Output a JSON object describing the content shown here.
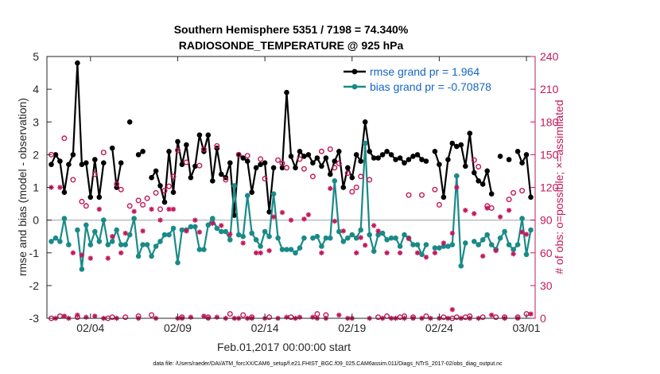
{
  "chart_data": {
    "type": "line",
    "title_line1": "Southern Hemisphere 5351 / 7198 = 74.340%",
    "title_line2": "RADIOSONDE_TEMPERATURE @ 925 hPa",
    "xlabel": "Feb.01,2017 00:00:00 start",
    "ylabel_left": "rmse and bias (model - observation)",
    "ylabel_right": "# of obs: o=possible; ×=assimilated",
    "footnote": "data file: /Users/raeder/DAI/ATM_forcXX/CAM6_setup/f.e21.FHIST_BGC.f09_025.CAM6assim.011/Diags_NTrS_2017-02/obs_diag_output.nc",
    "x_range_days": [
      0.5,
      28.5
    ],
    "y_left_range": [
      -3,
      5
    ],
    "y_left_ticks": [
      "5",
      "4",
      "3",
      "2",
      "1",
      "0",
      "-1",
      "-2",
      "-3"
    ],
    "y_right_range": [
      0,
      240
    ],
    "y_right_ticks": [
      "240",
      "210",
      "180",
      "150",
      "120",
      "90",
      "60",
      "30",
      "0"
    ],
    "x_ticks": [
      {
        "day": 3.0,
        "label": "02/04"
      },
      {
        "day": 8.0,
        "label": "02/09"
      },
      {
        "day": 13.0,
        "label": "02/14"
      },
      {
        "day": 18.0,
        "label": "02/19"
      },
      {
        "day": 23.0,
        "label": "02/24"
      },
      {
        "day": 28.0,
        "label": "03/01"
      }
    ],
    "legend": {
      "position": "top-right",
      "entries": [
        "rmse grand pr = 1.964",
        "bias grand pr = -0.70878"
      ]
    },
    "colors": {
      "rmse": "#000000",
      "bias": "#1a8a88",
      "obs": "#c2185b",
      "legend_text": "#1565c0",
      "zero_line": "#bdbdbd"
    },
    "series_rmse": [
      [
        0.75,
        1.7
      ],
      [
        1.0,
        2.0
      ],
      [
        1.25,
        1.8
      ],
      [
        1.5,
        0.85
      ],
      [
        1.75,
        1.7
      ],
      [
        2.0,
        2.0
      ],
      [
        2.25,
        4.8
      ],
      [
        2.5,
        1.7
      ],
      [
        2.75,
        1.75
      ],
      [
        3.0,
        0.7
      ],
      [
        3.25,
        1.85
      ],
      [
        3.5,
        0.7
      ],
      [
        3.75,
        1.75
      ],
      [
        4.25,
        2.2
      ],
      [
        4.5,
        1.0
      ],
      [
        4.75,
        1.75
      ],
      [
        5.25,
        3.0
      ],
      [
        5.75,
        2.0
      ],
      [
        6.0,
        2.1
      ],
      [
        6.5,
        1.3
      ],
      [
        6.75,
        1.5
      ],
      [
        7.0,
        1.05
      ],
      [
        7.25,
        0.55
      ],
      [
        7.5,
        2.1
      ],
      [
        7.75,
        0.85
      ],
      [
        8.0,
        2.4
      ],
      [
        8.25,
        1.7
      ],
      [
        8.5,
        2.3
      ],
      [
        8.75,
        1.3
      ],
      [
        9.0,
        1.65
      ],
      [
        9.25,
        2.6
      ],
      [
        9.5,
        2.1
      ],
      [
        9.75,
        2.6
      ],
      [
        10.0,
        1.2
      ],
      [
        10.25,
        2.2
      ],
      [
        10.5,
        1.4
      ],
      [
        10.75,
        1.3
      ],
      [
        11.0,
        1.75
      ],
      [
        11.25,
        0.15
      ],
      [
        11.5,
        2.0
      ],
      [
        11.75,
        1.9
      ],
      [
        12.0,
        1.8
      ],
      [
        12.25,
        0.85
      ],
      [
        12.5,
        1.6
      ],
      [
        12.75,
        1.7
      ],
      [
        13.0,
        1.75
      ],
      [
        13.25,
        0.25
      ],
      [
        13.5,
        1.6
      ],
      [
        14.0,
        1.6
      ],
      [
        14.25,
        3.9
      ],
      [
        14.5,
        1.95
      ],
      [
        14.75,
        1.6
      ],
      [
        15.0,
        2.1
      ],
      [
        15.25,
        1.95
      ],
      [
        15.5,
        2.0
      ],
      [
        15.75,
        1.75
      ],
      [
        16.0,
        1.9
      ],
      [
        16.25,
        1.65
      ],
      [
        16.5,
        1.9
      ],
      [
        16.75,
        1.4
      ],
      [
        17.0,
        1.8
      ],
      [
        17.25,
        2.1
      ],
      [
        17.5,
        1.0
      ],
      [
        17.75,
        1.6
      ],
      [
        18.0,
        1.3
      ],
      [
        18.25,
        2.0
      ],
      [
        18.5,
        1.8
      ],
      [
        18.75,
        3.0
      ],
      [
        19.0,
        2.1
      ],
      [
        19.25,
        1.9
      ],
      [
        19.5,
        1.9
      ],
      [
        19.75,
        2.0
      ],
      [
        20.0,
        2.1
      ],
      [
        20.25,
        2.0
      ],
      [
        20.5,
        1.85
      ],
      [
        20.75,
        1.9
      ],
      [
        21.0,
        1.75
      ],
      [
        21.25,
        1.85
      ],
      [
        21.5,
        1.95
      ],
      [
        21.75,
        2.0
      ],
      [
        22.0,
        1.85
      ],
      [
        22.25,
        1.8
      ],
      [
        22.75,
        2.1
      ],
      [
        23.0,
        1.7
      ],
      [
        23.25,
        0.7
      ],
      [
        23.5,
        1.85
      ],
      [
        23.75,
        2.35
      ],
      [
        24.0,
        2.25
      ],
      [
        24.25,
        2.3
      ],
      [
        24.5,
        1.65
      ],
      [
        24.75,
        2.65
      ],
      [
        25.0,
        1.45
      ],
      [
        25.25,
        1.2
      ],
      [
        25.5,
        1.1
      ],
      [
        25.75,
        1.5
      ],
      [
        26.0,
        0.8
      ],
      [
        26.5,
        1.95
      ],
      [
        27.0,
        1.85
      ],
      [
        27.5,
        2.1
      ],
      [
        27.75,
        1.75
      ],
      [
        28.0,
        2.0
      ],
      [
        28.25,
        0.7
      ]
    ],
    "series_bias": [
      [
        0.75,
        -0.65
      ],
      [
        1.0,
        -0.55
      ],
      [
        1.25,
        -0.65
      ],
      [
        1.5,
        0.05
      ],
      [
        1.75,
        -0.75
      ],
      [
        2.25,
        -0.3
      ],
      [
        2.5,
        -1.5
      ],
      [
        2.75,
        -0.15
      ],
      [
        3.0,
        -0.75
      ],
      [
        3.25,
        -0.35
      ],
      [
        3.5,
        -0.65
      ],
      [
        3.75,
        0.0
      ],
      [
        4.0,
        -0.75
      ],
      [
        4.25,
        -0.65
      ],
      [
        4.5,
        -0.3
      ],
      [
        4.75,
        -0.75
      ],
      [
        5.0,
        -0.75
      ],
      [
        5.25,
        -0.45
      ],
      [
        5.5,
        0.05
      ],
      [
        5.75,
        -1.1
      ],
      [
        6.0,
        -0.75
      ],
      [
        6.25,
        -0.75
      ],
      [
        6.5,
        -1.1
      ],
      [
        6.75,
        -0.8
      ],
      [
        7.0,
        -0.65
      ],
      [
        7.25,
        -0.45
      ],
      [
        7.5,
        -0.45
      ],
      [
        7.75,
        -0.25
      ],
      [
        8.0,
        -1.3
      ],
      [
        8.25,
        -0.3
      ],
      [
        8.5,
        -0.3
      ],
      [
        8.75,
        -0.2
      ],
      [
        9.0,
        -0.2
      ],
      [
        9.25,
        -0.9
      ],
      [
        9.5,
        -0.9
      ],
      [
        9.75,
        -0.15
      ],
      [
        10.0,
        0.05
      ],
      [
        10.25,
        -0.25
      ],
      [
        10.5,
        -0.35
      ],
      [
        10.75,
        -0.35
      ],
      [
        11.0,
        -0.6
      ],
      [
        11.25,
        1.05
      ],
      [
        11.5,
        -0.45
      ],
      [
        11.75,
        -0.5
      ],
      [
        12.0,
        0.75
      ],
      [
        12.25,
        -0.4
      ],
      [
        12.5,
        -0.6
      ],
      [
        12.75,
        -0.8
      ],
      [
        13.0,
        -0.35
      ],
      [
        13.25,
        -0.5
      ],
      [
        13.5,
        0.8
      ],
      [
        13.75,
        -0.55
      ],
      [
        14.0,
        -0.9
      ],
      [
        14.25,
        -0.9
      ],
      [
        14.5,
        -0.9
      ],
      [
        14.75,
        -1.0
      ],
      [
        15.0,
        -0.85
      ],
      [
        15.25,
        -0.55
      ],
      [
        15.75,
        -0.55
      ],
      [
        16.0,
        -0.5
      ],
      [
        16.25,
        -0.8
      ],
      [
        16.5,
        -0.55
      ],
      [
        16.75,
        -0.55
      ],
      [
        17.0,
        1.2
      ],
      [
        17.25,
        -0.35
      ],
      [
        17.5,
        -0.65
      ],
      [
        17.75,
        -0.55
      ],
      [
        18.0,
        -0.45
      ],
      [
        18.25,
        -0.55
      ],
      [
        18.5,
        -0.3
      ],
      [
        18.75,
        2.35
      ],
      [
        19.0,
        -0.45
      ],
      [
        19.25,
        -0.95
      ],
      [
        19.5,
        -0.45
      ],
      [
        19.75,
        -0.4
      ],
      [
        20.0,
        -0.6
      ],
      [
        20.25,
        -0.55
      ],
      [
        20.5,
        -0.55
      ],
      [
        20.75,
        -0.8
      ],
      [
        21.0,
        -0.45
      ],
      [
        21.25,
        -0.55
      ],
      [
        21.5,
        -0.75
      ],
      [
        21.75,
        -0.75
      ],
      [
        22.0,
        -1.05
      ],
      [
        22.25,
        -0.75
      ],
      [
        22.75,
        -0.85
      ],
      [
        23.0,
        -0.85
      ],
      [
        23.25,
        -0.8
      ],
      [
        23.5,
        -0.8
      ],
      [
        23.75,
        -0.75
      ],
      [
        24.0,
        1.35
      ],
      [
        24.25,
        -1.4
      ],
      [
        24.5,
        -0.7
      ],
      [
        25.0,
        -0.65
      ],
      [
        25.25,
        -0.75
      ],
      [
        25.5,
        -0.6
      ],
      [
        25.75,
        -0.45
      ],
      [
        26.0,
        -0.75
      ],
      [
        26.25,
        -0.9
      ],
      [
        26.5,
        -0.55
      ],
      [
        26.75,
        -0.35
      ],
      [
        27.0,
        -0.75
      ],
      [
        27.25,
        -0.9
      ],
      [
        27.5,
        -0.75
      ],
      [
        27.75,
        0.05
      ],
      [
        28.0,
        -1.05
      ],
      [
        28.25,
        -0.3
      ]
    ],
    "obs_possible_circles": [
      [
        0.75,
        150
      ],
      [
        0.75,
        0
      ],
      [
        1.25,
        2
      ],
      [
        1.5,
        165
      ],
      [
        2.0,
        127
      ],
      [
        2.25,
        1
      ],
      [
        2.5,
        107
      ],
      [
        2.75,
        103
      ],
      [
        3.25,
        132
      ],
      [
        3.75,
        152
      ],
      [
        4.0,
        0
      ],
      [
        4.25,
        1
      ],
      [
        4.5,
        123
      ],
      [
        4.75,
        118
      ],
      [
        5.0,
        1
      ],
      [
        5.25,
        103
      ],
      [
        5.75,
        108
      ],
      [
        5.75,
        2
      ],
      [
        6.0,
        104
      ],
      [
        6.25,
        110
      ],
      [
        6.5,
        3
      ],
      [
        6.75,
        115
      ],
      [
        7.0,
        100
      ],
      [
        7.25,
        117
      ],
      [
        7.5,
        121
      ],
      [
        7.75,
        130
      ],
      [
        8.0,
        154
      ],
      [
        8.25,
        1
      ],
      [
        8.5,
        143
      ],
      [
        9.25,
        140
      ],
      [
        9.5,
        155
      ],
      [
        9.75,
        1
      ],
      [
        10.25,
        158
      ],
      [
        10.75,
        127
      ],
      [
        11.0,
        4
      ],
      [
        11.5,
        150
      ],
      [
        11.75,
        3
      ],
      [
        12.0,
        149
      ],
      [
        12.25,
        1
      ],
      [
        12.75,
        146
      ],
      [
        13.0,
        128
      ],
      [
        13.25,
        1
      ],
      [
        13.75,
        145
      ],
      [
        14.0,
        142
      ],
      [
        14.25,
        138
      ],
      [
        14.5,
        1
      ],
      [
        15.0,
        146
      ],
      [
        15.25,
        137
      ],
      [
        15.75,
        130
      ],
      [
        16.0,
        4
      ],
      [
        16.25,
        153
      ],
      [
        16.5,
        3
      ],
      [
        16.75,
        155
      ],
      [
        17.0,
        138
      ],
      [
        17.25,
        142
      ],
      [
        17.75,
        133
      ],
      [
        18.0,
        116
      ],
      [
        18.25,
        120
      ],
      [
        18.5,
        130
      ],
      [
        19.0,
        127
      ],
      [
        19.5,
        1
      ],
      [
        20.0,
        2
      ],
      [
        20.75,
        1
      ],
      [
        21.0,
        2
      ],
      [
        21.25,
        113
      ],
      [
        21.5,
        1
      ],
      [
        22.0,
        113
      ],
      [
        22.25,
        2
      ],
      [
        22.75,
        118
      ],
      [
        23.0,
        104
      ],
      [
        23.25,
        1
      ],
      [
        23.75,
        0
      ],
      [
        24.0,
        1
      ],
      [
        24.5,
        1
      ],
      [
        24.75,
        2
      ],
      [
        25.0,
        145
      ],
      [
        25.25,
        139
      ],
      [
        25.5,
        1
      ],
      [
        25.75,
        103
      ],
      [
        26.0,
        101
      ],
      [
        26.25,
        1
      ],
      [
        26.75,
        1
      ],
      [
        27.0,
        109
      ],
      [
        27.25,
        115
      ],
      [
        27.5,
        1
      ],
      [
        27.75,
        117
      ],
      [
        28.0,
        4
      ]
    ],
    "obs_assimilated_stars": [
      [
        0.75,
        120
      ],
      [
        1.0,
        0
      ],
      [
        1.25,
        120
      ],
      [
        1.5,
        2
      ],
      [
        1.75,
        0
      ],
      [
        2.0,
        60
      ],
      [
        2.25,
        3
      ],
      [
        2.5,
        58
      ],
      [
        2.75,
        1
      ],
      [
        3.0,
        55
      ],
      [
        3.25,
        2
      ],
      [
        3.5,
        100
      ],
      [
        3.75,
        0
      ],
      [
        4.0,
        55
      ],
      [
        4.25,
        75
      ],
      [
        4.5,
        0
      ],
      [
        4.75,
        60
      ],
      [
        5.0,
        78
      ],
      [
        5.5,
        98
      ],
      [
        5.75,
        0
      ],
      [
        6.0,
        80
      ],
      [
        6.5,
        100
      ],
      [
        6.75,
        0
      ],
      [
        7.0,
        90
      ],
      [
        7.5,
        100
      ],
      [
        7.75,
        100
      ],
      [
        8.0,
        0
      ],
      [
        8.25,
        0
      ],
      [
        8.5,
        80
      ],
      [
        8.75,
        1
      ],
      [
        9.0,
        90
      ],
      [
        9.25,
        79
      ],
      [
        9.5,
        2
      ],
      [
        9.75,
        0
      ],
      [
        10.0,
        87
      ],
      [
        10.25,
        1
      ],
      [
        10.5,
        85
      ],
      [
        10.75,
        0
      ],
      [
        11.0,
        77
      ],
      [
        11.25,
        0
      ],
      [
        11.5,
        0
      ],
      [
        11.75,
        69
      ],
      [
        12.0,
        0
      ],
      [
        12.25,
        0
      ],
      [
        12.5,
        60
      ],
      [
        12.75,
        60
      ],
      [
        13.0,
        0
      ],
      [
        13.25,
        62
      ],
      [
        13.5,
        93
      ],
      [
        13.75,
        0
      ],
      [
        14.0,
        97
      ],
      [
        14.25,
        1
      ],
      [
        14.5,
        90
      ],
      [
        14.75,
        0
      ],
      [
        15.0,
        1
      ],
      [
        15.25,
        91
      ],
      [
        15.5,
        95
      ],
      [
        15.75,
        1
      ],
      [
        16.0,
        0
      ],
      [
        16.25,
        60
      ],
      [
        16.5,
        0
      ],
      [
        16.75,
        119
      ],
      [
        17.0,
        89
      ],
      [
        17.25,
        3
      ],
      [
        17.5,
        80
      ],
      [
        17.75,
        0
      ],
      [
        18.0,
        0
      ],
      [
        18.25,
        60
      ],
      [
        18.5,
        74
      ],
      [
        18.75,
        67
      ],
      [
        19.0,
        0
      ],
      [
        19.25,
        85
      ],
      [
        19.5,
        80
      ],
      [
        19.75,
        0
      ],
      [
        20.0,
        60
      ],
      [
        20.25,
        0
      ],
      [
        20.5,
        0
      ],
      [
        20.75,
        60
      ],
      [
        21.0,
        0
      ],
      [
        21.25,
        73
      ],
      [
        21.5,
        0
      ],
      [
        21.75,
        60
      ],
      [
        22.0,
        0
      ],
      [
        22.25,
        56
      ],
      [
        22.5,
        0
      ],
      [
        22.75,
        60
      ],
      [
        23.0,
        0
      ],
      [
        23.25,
        69
      ],
      [
        23.5,
        0
      ],
      [
        23.75,
        78
      ],
      [
        23.75,
        8
      ],
      [
        24.0,
        120
      ],
      [
        24.25,
        0
      ],
      [
        24.5,
        99
      ],
      [
        24.75,
        0
      ],
      [
        25.0,
        96
      ],
      [
        25.25,
        0
      ],
      [
        25.5,
        57
      ],
      [
        25.75,
        101
      ],
      [
        26.0,
        3
      ],
      [
        26.25,
        62
      ],
      [
        26.5,
        93
      ],
      [
        26.75,
        0
      ],
      [
        27.0,
        99
      ],
      [
        27.25,
        59
      ],
      [
        27.5,
        0
      ],
      [
        27.75,
        79
      ],
      [
        28.0,
        77
      ],
      [
        28.25,
        4
      ]
    ]
  }
}
